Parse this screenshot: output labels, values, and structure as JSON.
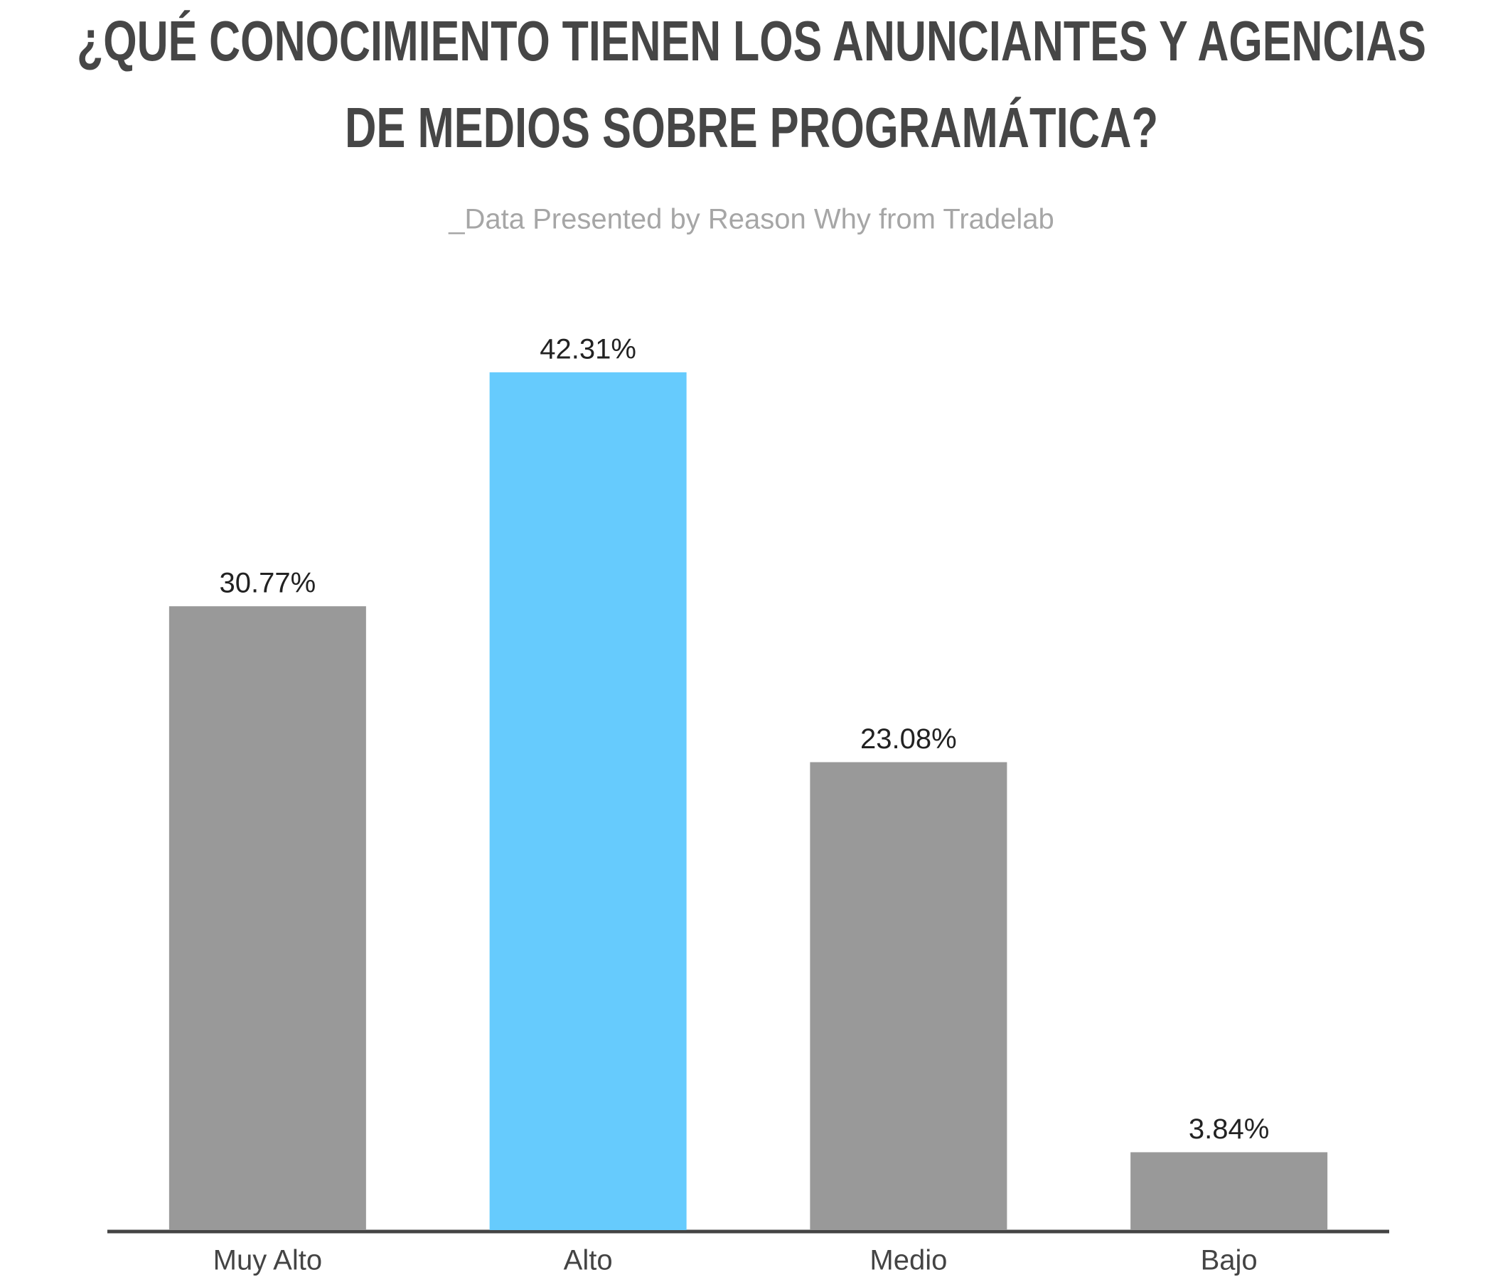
{
  "chart_data": {
    "type": "bar",
    "title": [
      "¿QUÉ CONOCIMIENTO TIENEN LOS ANUNCIANTES Y AGENCIAS",
      "DE MEDIOS SOBRE PROGRAMÁTICA?"
    ],
    "subtitle": "_Data Presented by Reason Why from Tradelab",
    "categories": [
      "Muy Alto",
      "Alto",
      "Medio",
      "Bajo"
    ],
    "values": [
      30.77,
      42.31,
      23.08,
      3.84
    ],
    "value_labels": [
      "30.77%",
      "42.31%",
      "23.08%",
      "3.84%"
    ],
    "colors": [
      "#999999",
      "#66cbfd",
      "#999999",
      "#999999"
    ]
  }
}
